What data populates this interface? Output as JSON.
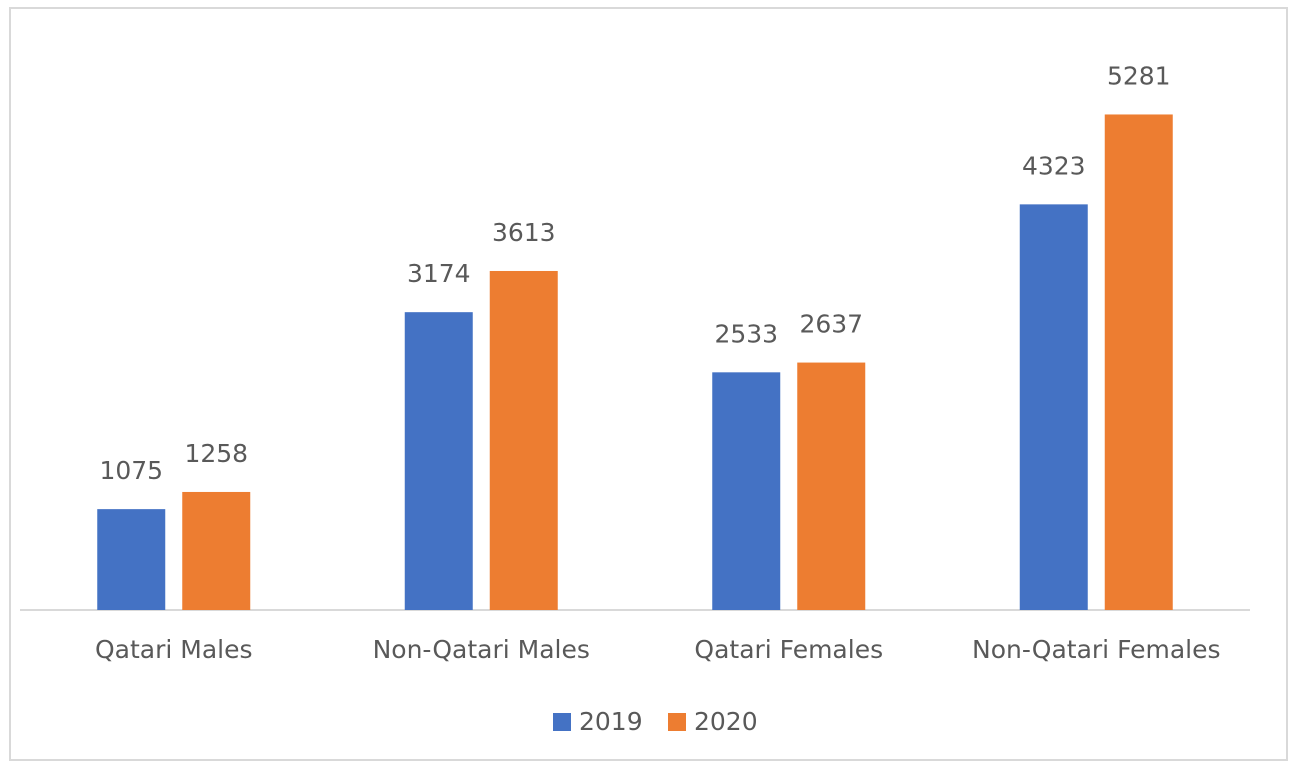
{
  "chart_data": {
    "type": "bar",
    "categories": [
      "Qatari Males",
      "Non-Qatari Males",
      "Qatari Females",
      "Non-Qatari Females"
    ],
    "series": [
      {
        "name": "2019",
        "color": "#4472c4",
        "values": [
          1075,
          3174,
          2533,
          4323
        ]
      },
      {
        "name": "2020",
        "color": "#ed7d31",
        "values": [
          1258,
          3613,
          2637,
          5281
        ]
      }
    ],
    "ylim": [
      0,
      6000
    ],
    "legend": "bottom",
    "grid": false
  }
}
